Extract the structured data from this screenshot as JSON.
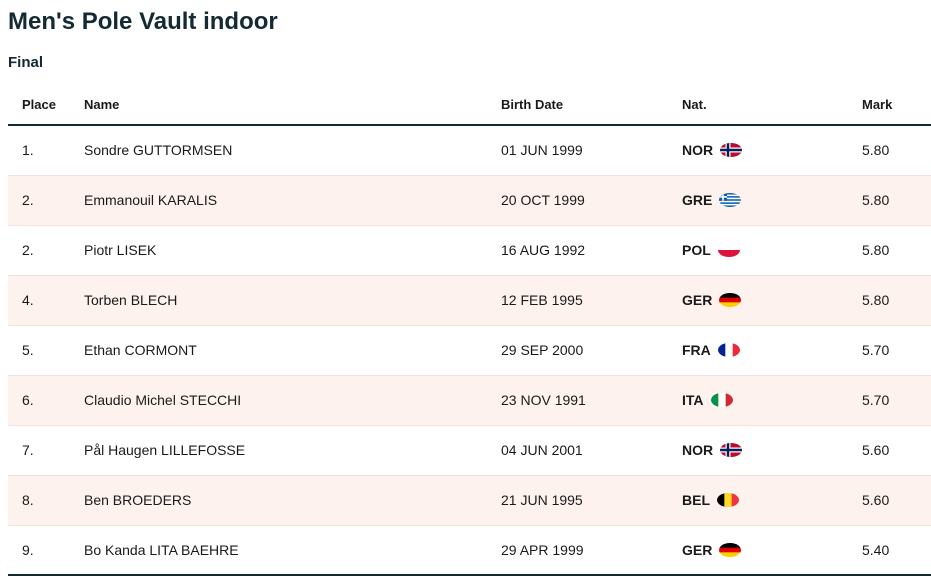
{
  "page": {
    "title": "Men's Pole Vault indoor",
    "subtitle": "Final"
  },
  "table": {
    "headers": [
      "Place",
      "Name",
      "Birth Date",
      "Nat.",
      "Mark"
    ],
    "rows": [
      {
        "place": "1.",
        "name": "Sondre GUTTORMSEN",
        "birth_date": "01 JUN 1999",
        "nat": "NOR",
        "mark": "5.80"
      },
      {
        "place": "2.",
        "name": "Emmanouil KARALIS",
        "birth_date": "20 OCT 1999",
        "nat": "GRE",
        "mark": "5.80"
      },
      {
        "place": "2.",
        "name": "Piotr LISEK",
        "birth_date": "16 AUG 1992",
        "nat": "POL",
        "mark": "5.80"
      },
      {
        "place": "4.",
        "name": "Torben BLECH",
        "birth_date": "12 FEB 1995",
        "nat": "GER",
        "mark": "5.80"
      },
      {
        "place": "5.",
        "name": "Ethan CORMONT",
        "birth_date": "29 SEP 2000",
        "nat": "FRA",
        "mark": "5.70"
      },
      {
        "place": "6.",
        "name": "Claudio Michel STECCHI",
        "birth_date": "23 NOV 1991",
        "nat": "ITA",
        "mark": "5.70"
      },
      {
        "place": "7.",
        "name": "Pål Haugen LILLEFOSSE",
        "birth_date": "04 JUN 2001",
        "nat": "NOR",
        "mark": "5.60"
      },
      {
        "place": "8.",
        "name": "Ben BROEDERS",
        "birth_date": "21 JUN 1995",
        "nat": "BEL",
        "mark": "5.60"
      },
      {
        "place": "9.",
        "name": "Bo Kanda LITA BAEHRE",
        "birth_date": "29 APR 1999",
        "nat": "GER",
        "mark": "5.40"
      }
    ]
  },
  "flags": {
    "NOR": {
      "type": "nordic",
      "bg": "#ba0c2f",
      "cross_outer": "#ffffff",
      "cross_inner": "#00205b"
    },
    "GRE": {
      "type": "greek",
      "blue": "#0d5eaf",
      "white": "#ffffff"
    },
    "POL": {
      "type": "h",
      "colors": [
        "#ffffff",
        "#dc143c"
      ]
    },
    "GER": {
      "type": "h",
      "colors": [
        "#000000",
        "#dd0000",
        "#ffce00"
      ]
    },
    "FRA": {
      "type": "v",
      "colors": [
        "#002395",
        "#ffffff",
        "#ed2939"
      ]
    },
    "ITA": {
      "type": "v",
      "colors": [
        "#009246",
        "#ffffff",
        "#ce2b37"
      ]
    },
    "BEL": {
      "type": "v",
      "colors": [
        "#000000",
        "#fdda24",
        "#ef3340"
      ]
    }
  },
  "colors": {
    "accent_dark": "#142a33",
    "row_alt_bg": "#fdf2ee",
    "row_line": "#f3e2dc",
    "text_color": "#1a1a1a"
  }
}
